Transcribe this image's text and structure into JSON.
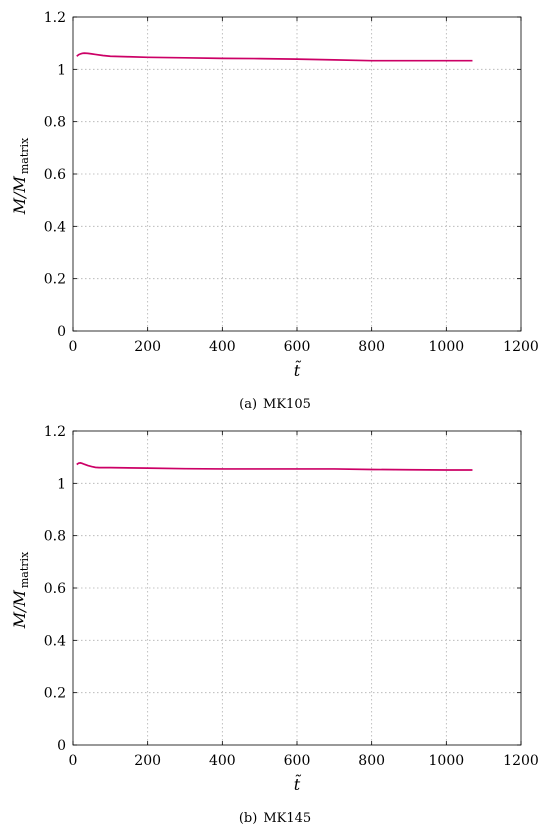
{
  "chart_data": [
    {
      "type": "line",
      "caption_tag": "(a)",
      "caption_name": "MK105",
      "xlabel": "t̃",
      "ylabel_main": "M/M",
      "ylabel_sub": "matrix",
      "xlim": [
        0,
        1200
      ],
      "ylim": [
        0,
        1.2
      ],
      "xticks": [
        "0",
        "200",
        "400",
        "600",
        "800",
        "1000",
        "1200"
      ],
      "yticks": [
        "0",
        "0.2",
        "0.4",
        "0.6",
        "0.8",
        "1",
        "1.2"
      ],
      "grid": true,
      "series": [
        {
          "color": "#cc0066",
          "x": [
            10,
            15,
            20,
            25,
            30,
            40,
            50,
            60,
            80,
            100,
            150,
            200,
            300,
            400,
            500,
            600,
            700,
            800,
            900,
            1000,
            1070
          ],
          "y": [
            1.05,
            1.056,
            1.059,
            1.061,
            1.062,
            1.061,
            1.059,
            1.057,
            1.053,
            1.05,
            1.048,
            1.046,
            1.044,
            1.042,
            1.041,
            1.039,
            1.036,
            1.033,
            1.033,
            1.033,
            1.033
          ]
        }
      ]
    },
    {
      "type": "line",
      "caption_tag": "(b)",
      "caption_name": "MK145",
      "xlabel": "t̃",
      "ylabel_main": "M/M",
      "ylabel_sub": "matrix",
      "xlim": [
        0,
        1200
      ],
      "ylim": [
        0,
        1.2
      ],
      "xticks": [
        "0",
        "200",
        "400",
        "600",
        "800",
        "1000",
        "1200"
      ],
      "yticks": [
        "0",
        "0.2",
        "0.4",
        "0.6",
        "0.8",
        "1",
        "1.2"
      ],
      "grid": true,
      "series": [
        {
          "color": "#cc0066",
          "x": [
            10,
            15,
            20,
            25,
            30,
            40,
            50,
            60,
            70,
            80,
            100,
            200,
            300,
            400,
            500,
            600,
            700,
            800,
            900,
            1000,
            1070
          ],
          "y": [
            1.072,
            1.077,
            1.078,
            1.076,
            1.073,
            1.068,
            1.064,
            1.061,
            1.06,
            1.06,
            1.06,
            1.058,
            1.056,
            1.055,
            1.055,
            1.055,
            1.055,
            1.053,
            1.052,
            1.051,
            1.051
          ]
        }
      ]
    }
  ]
}
